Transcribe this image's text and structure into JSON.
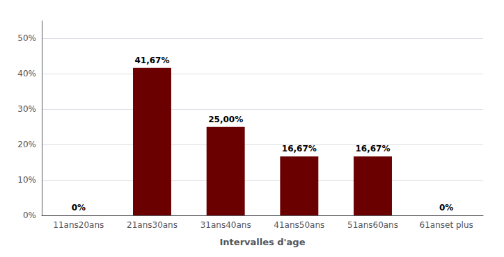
{
  "chart_data": {
    "type": "bar",
    "xlabel": "Intervalles d'age",
    "categories": [
      "11ans20ans",
      "21ans30ans",
      "31ans40ans",
      "41ans50ans",
      "51ans60ans",
      "61anset plus"
    ],
    "values": [
      0.0,
      41.67,
      25.0,
      16.67,
      16.67,
      0.0
    ],
    "value_labels": [
      "0%",
      "41,67%",
      "25,00%",
      "16,67%",
      "16,67%",
      "0%"
    ],
    "data_labels": true,
    "color": "#6B0000",
    "ylim": [
      0,
      55
    ],
    "yticks": [
      {
        "value": 0,
        "label": "0%"
      },
      {
        "value": 10,
        "label": "10%"
      },
      {
        "value": 20,
        "label": "20%"
      },
      {
        "value": 30,
        "label": "30%"
      },
      {
        "value": 40,
        "label": "40%"
      },
      {
        "value": 50,
        "label": "50%"
      }
    ],
    "grid": true
  }
}
